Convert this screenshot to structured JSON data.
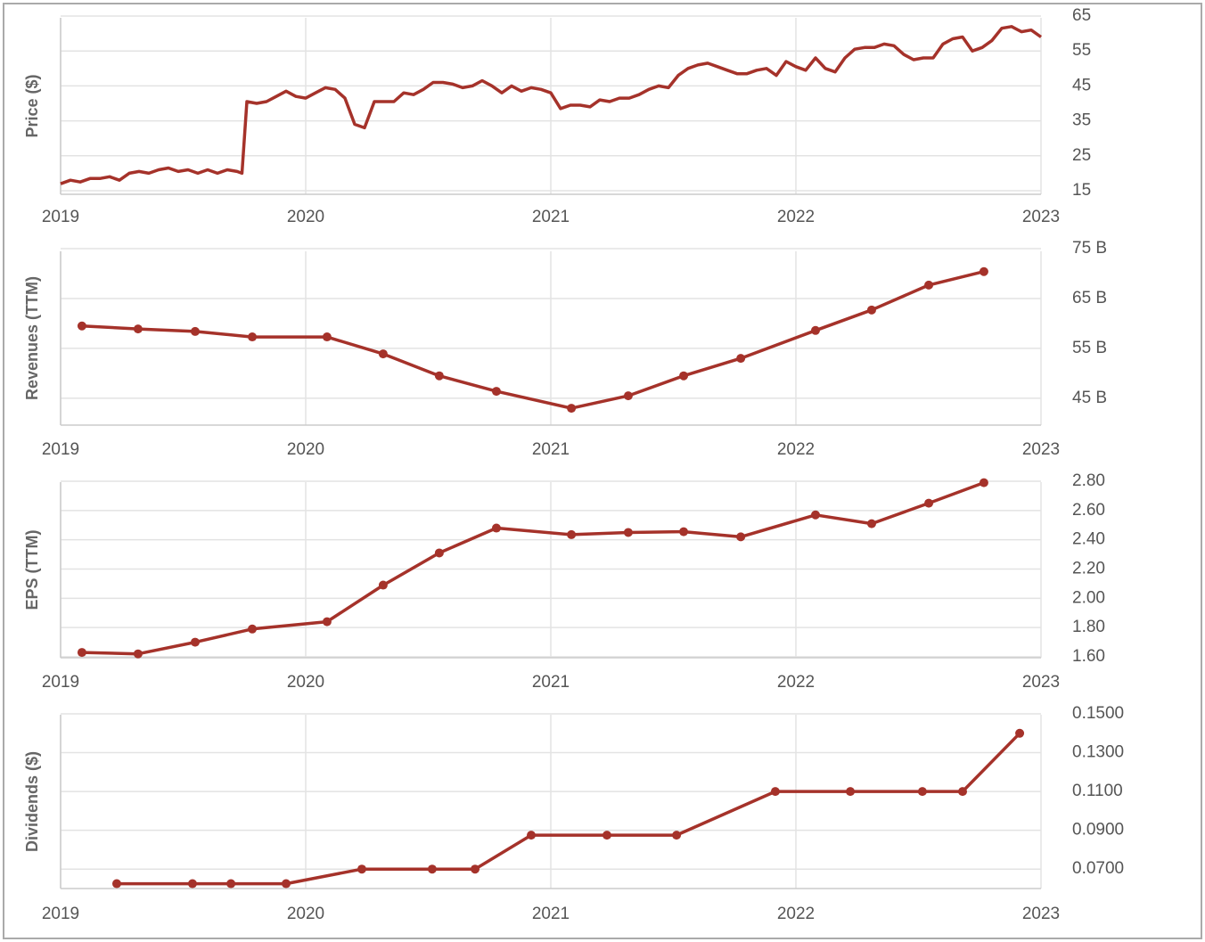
{
  "chart_data": [
    {
      "type": "line",
      "y_label": "Price ($)",
      "color": "#a5322a",
      "markers": false,
      "grid": true,
      "xlim": [
        2019,
        2023
      ],
      "xticks": [
        2019,
        2020,
        2021,
        2022,
        2023
      ],
      "ylim": [
        15,
        65
      ],
      "yticks": [
        15,
        25,
        35,
        45,
        55,
        65
      ],
      "x": [
        2019,
        2019.04,
        2019.08,
        2019.12,
        2019.16,
        2019.2,
        2019.24,
        2019.28,
        2019.32,
        2019.36,
        2019.4,
        2019.44,
        2019.48,
        2019.52,
        2019.56,
        2019.6,
        2019.64,
        2019.68,
        2019.72,
        2019.74,
        2019.76,
        2019.8,
        2019.84,
        2019.88,
        2019.92,
        2019.96,
        2020,
        2020.04,
        2020.08,
        2020.12,
        2020.16,
        2020.2,
        2020.24,
        2020.28,
        2020.32,
        2020.36,
        2020.4,
        2020.44,
        2020.48,
        2020.52,
        2020.56,
        2020.6,
        2020.64,
        2020.68,
        2020.72,
        2020.76,
        2020.8,
        2020.84,
        2020.88,
        2020.92,
        2020.96,
        2021,
        2021.04,
        2021.08,
        2021.12,
        2021.16,
        2021.2,
        2021.24,
        2021.28,
        2021.32,
        2021.36,
        2021.4,
        2021.44,
        2021.48,
        2021.52,
        2021.56,
        2021.6,
        2021.64,
        2021.68,
        2021.72,
        2021.76,
        2021.8,
        2021.84,
        2021.88,
        2021.92,
        2021.96,
        2022,
        2022.04,
        2022.08,
        2022.12,
        2022.16,
        2022.2,
        2022.24,
        2022.28,
        2022.32,
        2022.36,
        2022.4,
        2022.44,
        2022.48,
        2022.52,
        2022.56,
        2022.6,
        2022.64,
        2022.68,
        2022.72,
        2022.76,
        2022.8,
        2022.84,
        2022.88,
        2022.92,
        2022.96,
        2023
      ],
      "series": [
        {
          "name": "Price",
          "values": [
            17,
            18,
            17.5,
            18.5,
            18.5,
            19,
            18,
            20,
            20.5,
            20,
            21,
            21.5,
            20.5,
            21,
            20,
            21,
            20,
            21,
            20.5,
            20,
            40.5,
            40,
            40.5,
            42,
            43.5,
            42,
            41.5,
            43,
            44.5,
            44,
            41.5,
            34,
            33,
            40.5,
            40.5,
            40.5,
            43,
            42.5,
            44,
            46,
            46,
            45.5,
            44.5,
            45,
            46.5,
            45,
            43,
            45,
            43.5,
            44.5,
            44,
            43,
            38.5,
            39.5,
            39.5,
            39,
            41,
            40.5,
            41.5,
            41.5,
            42.5,
            44,
            45,
            44.5,
            48,
            50,
            51,
            51.5,
            50.5,
            49.5,
            48.5,
            48.5,
            49.5,
            50,
            48,
            52,
            50.5,
            49.5,
            53,
            50,
            49,
            53,
            55.5,
            56,
            56,
            57,
            56.5,
            54,
            52.5,
            53,
            53,
            57,
            58.5,
            59,
            55,
            56,
            58,
            61.5,
            62,
            60.5,
            61,
            59
          ]
        }
      ]
    },
    {
      "type": "line",
      "y_label": "Revenues (TTM)",
      "color": "#a5322a",
      "markers": true,
      "grid": true,
      "xlim": [
        2019,
        2023
      ],
      "xticks": [
        2019,
        2020,
        2021,
        2022,
        2023
      ],
      "ylim": [
        39.8,
        75
      ],
      "yticks": [
        {
          "value": 45,
          "label": "45 B"
        },
        {
          "value": 55,
          "label": "55 B"
        },
        {
          "value": 65,
          "label": "65 B"
        },
        {
          "value": 75,
          "label": "75 B"
        }
      ],
      "x": [
        2019.087,
        2019.316,
        2019.549,
        2019.782,
        2020.087,
        2020.316,
        2020.545,
        2020.778,
        2021.084,
        2021.316,
        2021.542,
        2021.775,
        2022.08,
        2022.309,
        2022.542,
        2022.767
      ],
      "series": [
        {
          "name": "Revenues",
          "values": [
            59.5,
            58.9,
            58.4,
            57.3,
            57.3,
            53.9,
            49.5,
            46.4,
            43.0,
            45.5,
            49.5,
            53.0,
            58.6,
            62.7,
            67.7,
            70.4
          ]
        }
      ]
    },
    {
      "type": "line",
      "y_label": "EPS (TTM)",
      "color": "#a5322a",
      "markers": true,
      "grid": true,
      "xlim": [
        2019,
        2023
      ],
      "xticks": [
        2019,
        2020,
        2021,
        2022,
        2023
      ],
      "ylim": [
        1.6,
        2.8
      ],
      "yticks": [
        {
          "value": 1.6,
          "label": "1.60"
        },
        {
          "value": 1.8,
          "label": "1.80"
        },
        {
          "value": 2,
          "label": "2.00"
        },
        {
          "value": 2.2,
          "label": "2.20"
        },
        {
          "value": 2.4,
          "label": "2.40"
        },
        {
          "value": 2.6,
          "label": "2.60"
        },
        {
          "value": 2.8,
          "label": "2.80"
        }
      ],
      "x": [
        2019.087,
        2019.316,
        2019.549,
        2019.782,
        2020.087,
        2020.316,
        2020.545,
        2020.778,
        2021.084,
        2021.316,
        2021.542,
        2021.775,
        2022.08,
        2022.309,
        2022.542,
        2022.767
      ],
      "series": [
        {
          "name": "EPS",
          "values": [
            1.63,
            1.62,
            1.7,
            1.79,
            1.84,
            2.09,
            2.31,
            2.48,
            2.435,
            2.45,
            2.455,
            2.42,
            2.57,
            2.51,
            2.65,
            2.79
          ]
        }
      ]
    },
    {
      "type": "line",
      "y_label": "Dividends ($)",
      "color": "#a5322a",
      "markers": true,
      "grid": true,
      "xlim": [
        2019,
        2023
      ],
      "xticks": [
        2019,
        2020,
        2021,
        2022,
        2023
      ],
      "ylim": [
        0.06,
        0.15
      ],
      "yticks": [
        {
          "value": 0.07,
          "label": "0.0700"
        },
        {
          "value": 0.09,
          "label": "0.0900"
        },
        {
          "value": 0.11,
          "label": "0.1100"
        },
        {
          "value": 0.13,
          "label": "0.1300"
        },
        {
          "value": 0.15,
          "label": "0.1500"
        }
      ],
      "x": [
        2019.229,
        2019.538,
        2019.695,
        2019.92,
        2020.229,
        2020.516,
        2020.691,
        2020.92,
        2021.229,
        2021.513,
        2021.916,
        2022.222,
        2022.516,
        2022.68,
        2022.913
      ],
      "series": [
        {
          "name": "Dividends",
          "values": [
            0.0625,
            0.0625,
            0.0625,
            0.0625,
            0.07,
            0.07,
            0.07,
            0.0875,
            0.0875,
            0.0875,
            0.11,
            0.11,
            0.11,
            0.11,
            0.14
          ]
        }
      ]
    }
  ]
}
